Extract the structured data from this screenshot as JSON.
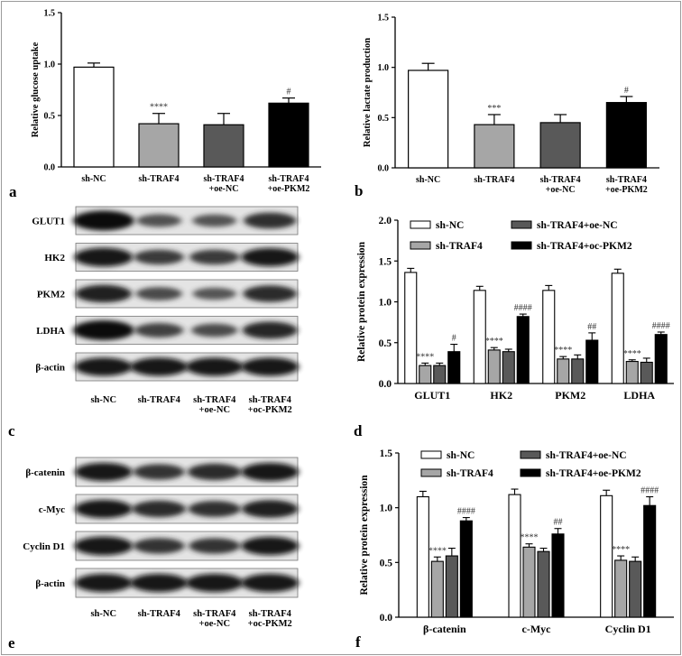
{
  "panels": {
    "a": {
      "letter": "a",
      "chart_data": {
        "type": "bar",
        "ylabel": "Relative glucose uptake",
        "xlabel": "",
        "ylim": [
          0,
          1.5
        ],
        "yticks": [
          "0.0",
          "0.5",
          "1.0",
          "1.5"
        ],
        "categories": [
          "sh-NC",
          "sh-TRAF4",
          "sh-TRAF4\n+oe-NC",
          "sh-TRAF4\n+oe-PKM2"
        ],
        "values": [
          0.97,
          0.42,
          0.41,
          0.62
        ],
        "errors": [
          0.04,
          0.1,
          0.11,
          0.05
        ],
        "fills": [
          "#ffffff",
          "#a6a6a6",
          "#595959",
          "#000000"
        ],
        "annotations": [
          "",
          "****",
          "",
          "#"
        ]
      }
    },
    "b": {
      "letter": "b",
      "chart_data": {
        "type": "bar",
        "ylabel": "Relative lactate production",
        "xlabel": "",
        "ylim": [
          0,
          1.5
        ],
        "yticks": [
          "0.0",
          "0.5",
          "1.0",
          "1.5"
        ],
        "categories": [
          "sh-NC",
          "sh-TRAF4",
          "sh-TRAF4\n+oe-NC",
          "sh-TRAF4\n+oe-PKM2"
        ],
        "values": [
          0.97,
          0.43,
          0.45,
          0.65
        ],
        "errors": [
          0.07,
          0.1,
          0.08,
          0.06
        ],
        "fills": [
          "#ffffff",
          "#a6a6a6",
          "#595959",
          "#000000"
        ],
        "annotations": [
          "",
          "***",
          "",
          "#"
        ]
      }
    },
    "c": {
      "letter": "c",
      "row_labels": [
        "GLUT1",
        "HK2",
        "PKM2",
        "LDHA",
        "β-actin"
      ],
      "lane_labels": [
        "sh-NC",
        "sh-TRAF4",
        "sh-TRAF4\n+oe-NC",
        "sh-TRAF4\n+oc-PKM2"
      ],
      "band_intensity": [
        [
          1.0,
          0.35,
          0.32,
          0.65
        ],
        [
          0.9,
          0.55,
          0.55,
          0.85
        ],
        [
          0.8,
          0.4,
          0.3,
          0.7
        ],
        [
          1.0,
          0.5,
          0.4,
          0.75
        ],
        [
          0.85,
          0.85,
          0.85,
          0.85
        ]
      ]
    },
    "d": {
      "letter": "d",
      "chart_data": {
        "type": "bar",
        "ylabel": "Relative protein expression",
        "xlabel": "",
        "ylim": [
          0,
          2.0
        ],
        "yticks": [
          "0.0",
          "0.5",
          "1.0",
          "1.5",
          "2.0"
        ],
        "categories": [
          "GLUT1",
          "HK2",
          "PKM2",
          "LDHA"
        ],
        "legend": [
          "sh-NC",
          "sh-TRAF4",
          "sh-TRAF4+oe-NC",
          "sh-TRAF4+oc-PKM2"
        ],
        "fills": [
          "#ffffff",
          "#a6a6a6",
          "#595959",
          "#000000"
        ],
        "series": [
          {
            "name": "sh-NC",
            "values": [
              1.36,
              1.14,
              1.14,
              1.35
            ],
            "errors": [
              0.05,
              0.05,
              0.06,
              0.05
            ]
          },
          {
            "name": "sh-TRAF4",
            "values": [
              0.22,
              0.41,
              0.3,
              0.27
            ],
            "errors": [
              0.03,
              0.03,
              0.03,
              0.02
            ]
          },
          {
            "name": "sh-TRAF4+oe-NC",
            "values": [
              0.22,
              0.39,
              0.3,
              0.26
            ],
            "errors": [
              0.03,
              0.03,
              0.05,
              0.05
            ]
          },
          {
            "name": "sh-TRAF4+oc-PKM2",
            "values": [
              0.39,
              0.82,
              0.53,
              0.6
            ],
            "errors": [
              0.09,
              0.03,
              0.09,
              0.03
            ]
          }
        ],
        "annotations": {
          "sh-TRAF4": [
            "****",
            "****",
            "****",
            "****"
          ],
          "sh-TRAF4+oc-PKM2": [
            "#",
            "####",
            "##",
            "####"
          ]
        }
      }
    },
    "e": {
      "letter": "e",
      "row_labels": [
        "β-catenin",
        "c-Myc",
        "Cyclin D1",
        "β-actin"
      ],
      "lane_labels": [
        "sh-NC",
        "sh-TRAF4",
        "sh-TRAF4\n+oe-NC",
        "sh-TRAF4\n+oc-PKM2"
      ],
      "band_intensity": [
        [
          0.85,
          0.6,
          0.7,
          0.85
        ],
        [
          0.85,
          0.7,
          0.65,
          0.8
        ],
        [
          0.9,
          0.6,
          0.6,
          0.85
        ],
        [
          0.85,
          0.85,
          0.85,
          0.85
        ]
      ]
    },
    "f": {
      "letter": "f",
      "chart_data": {
        "type": "bar",
        "ylabel": "Relative protein expression",
        "xlabel": "",
        "ylim": [
          0,
          1.5
        ],
        "yticks": [
          "0.0",
          "0.5",
          "1.0",
          "1.5"
        ],
        "categories": [
          "β-catenin",
          "c-Myc",
          "Cyclin D1"
        ],
        "legend": [
          "sh-NC",
          "sh-TRAF4",
          "sh-TRAF4+oe-NC",
          "sh-TRAF4+oe-PKM2"
        ],
        "fills": [
          "#ffffff",
          "#a6a6a6",
          "#595959",
          "#000000"
        ],
        "series": [
          {
            "name": "sh-NC",
            "values": [
              1.1,
              1.12,
              1.11
            ],
            "errors": [
              0.05,
              0.05,
              0.05
            ]
          },
          {
            "name": "sh-TRAF4",
            "values": [
              0.51,
              0.64,
              0.52
            ],
            "errors": [
              0.04,
              0.03,
              0.04
            ]
          },
          {
            "name": "sh-TRAF4+oe-NC",
            "values": [
              0.56,
              0.6,
              0.51
            ],
            "errors": [
              0.07,
              0.03,
              0.04
            ]
          },
          {
            "name": "sh-TRAF4+oe-PKM2",
            "values": [
              0.88,
              0.76,
              1.02
            ],
            "errors": [
              0.03,
              0.05,
              0.08
            ]
          }
        ],
        "annotations": {
          "sh-TRAF4": [
            "****",
            "****",
            "****"
          ],
          "sh-TRAF4+oe-PKM2": [
            "####",
            "##",
            "####"
          ]
        }
      }
    }
  }
}
